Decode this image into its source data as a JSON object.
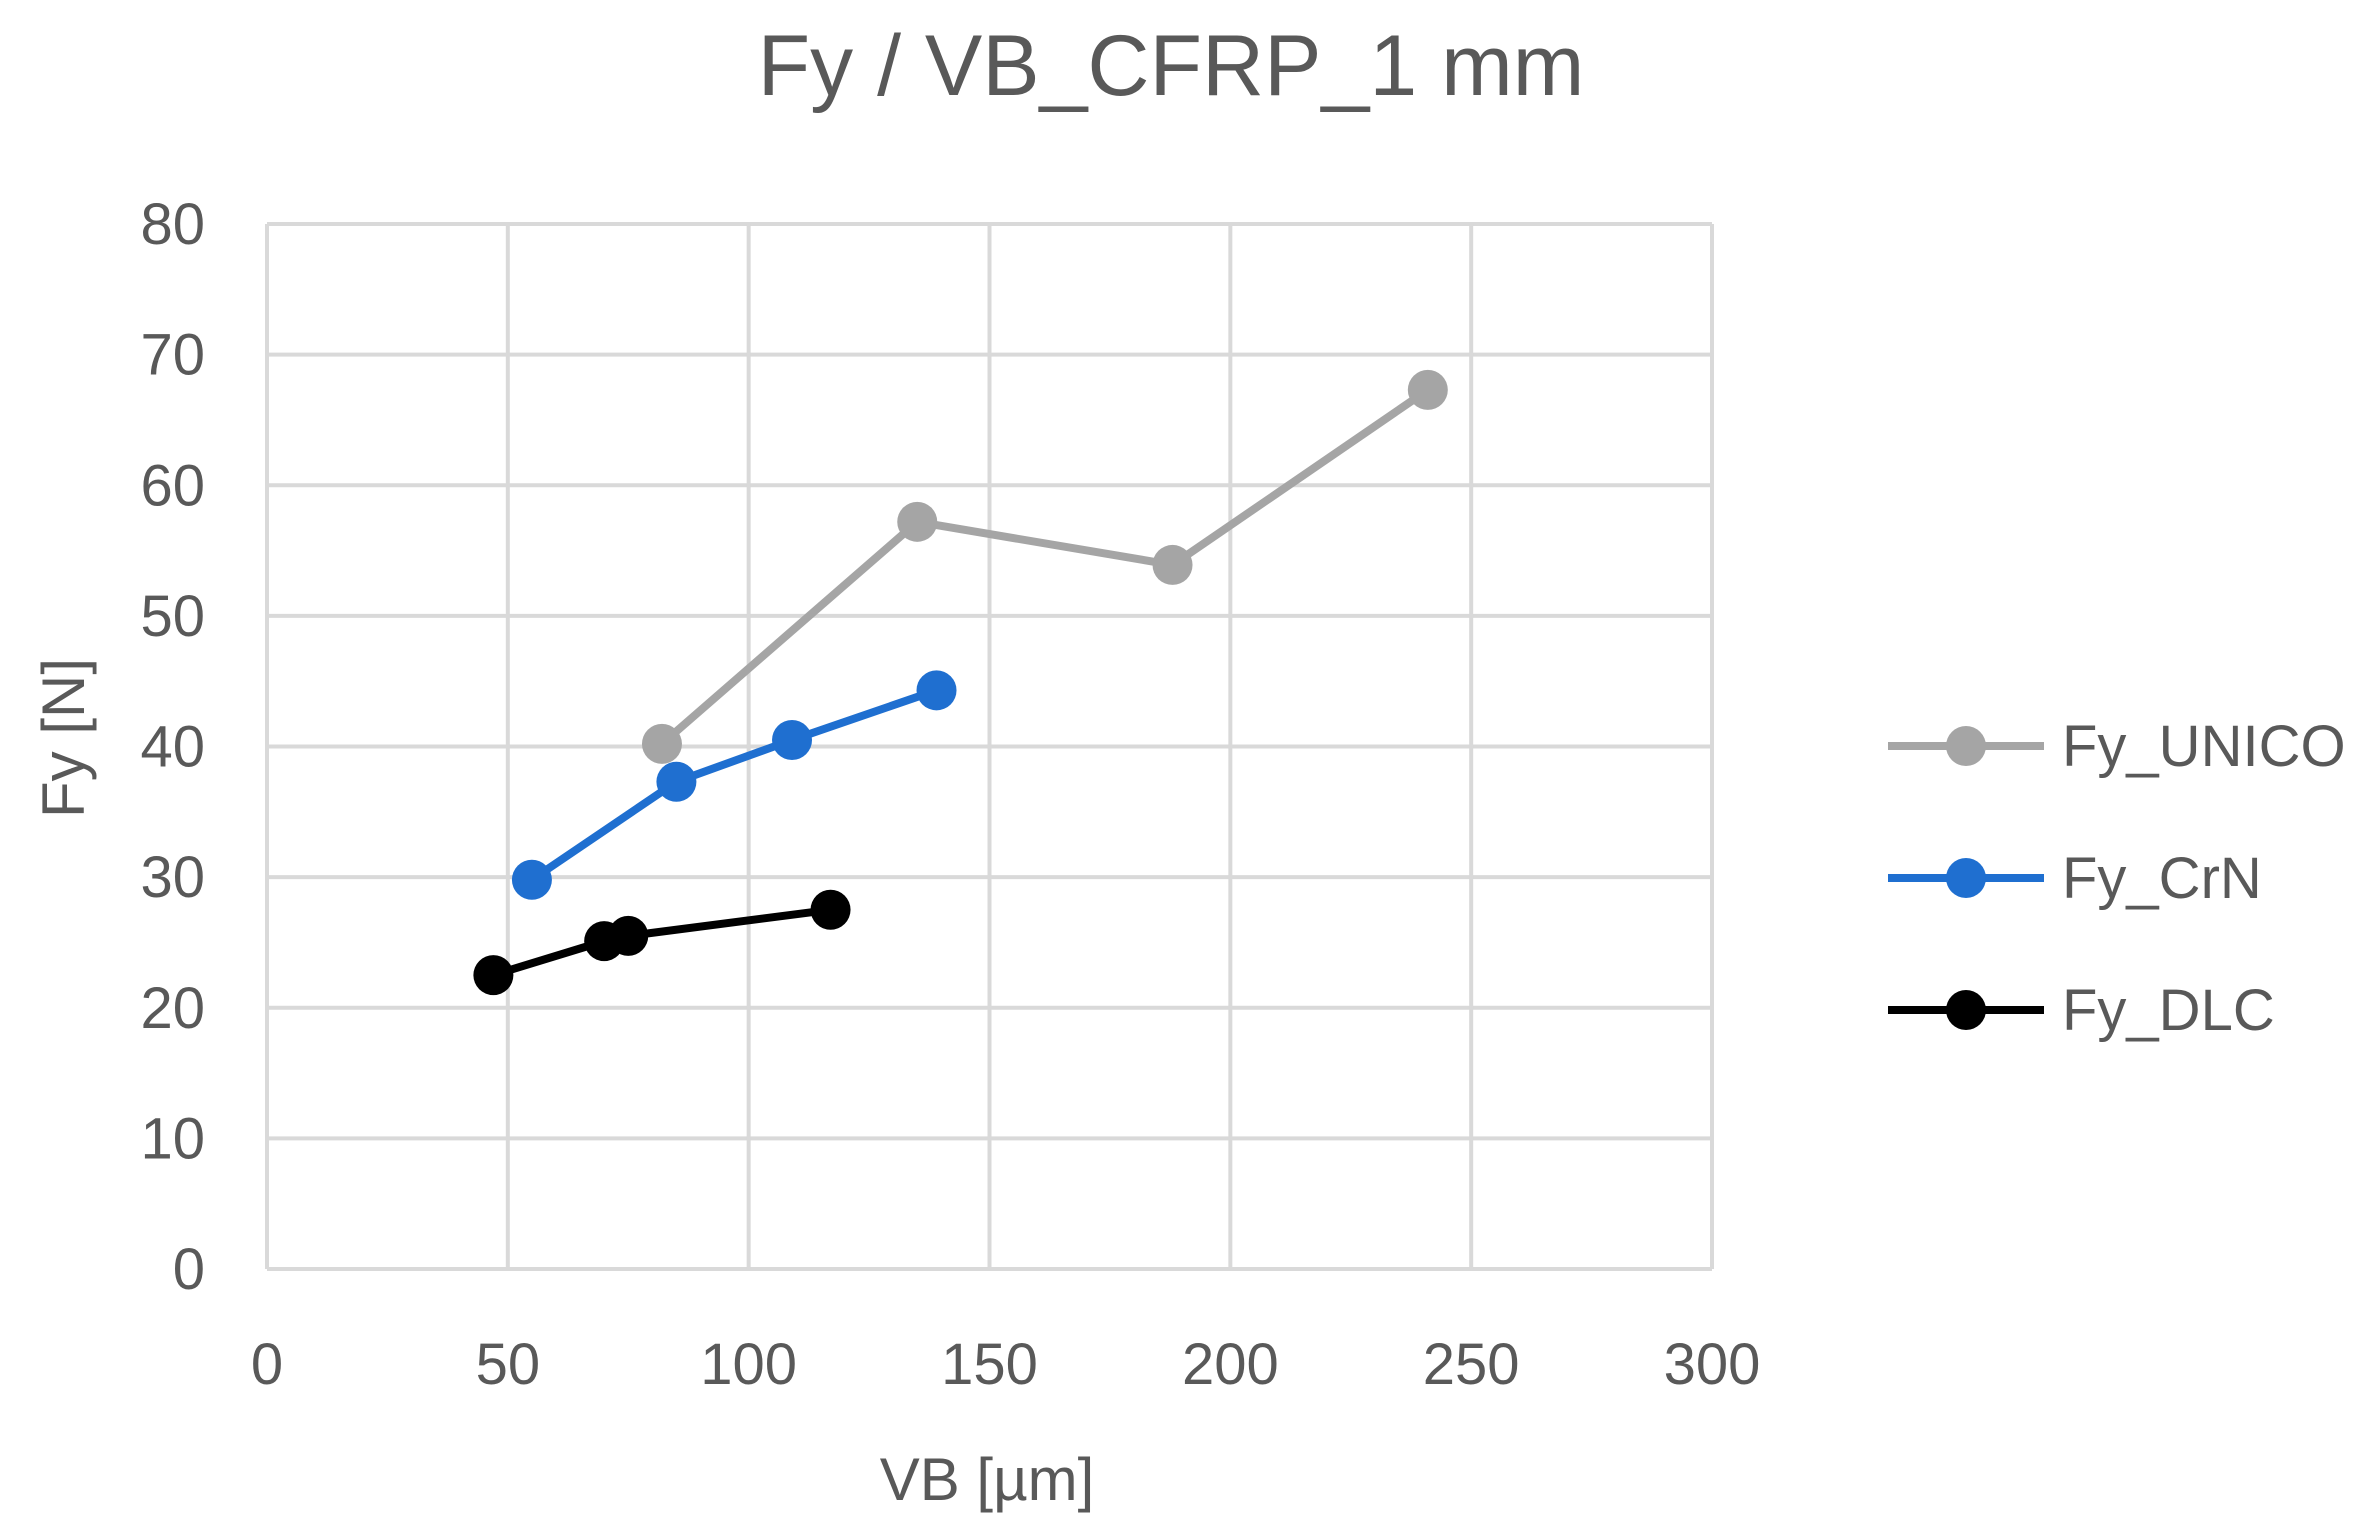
{
  "chart_data": {
    "type": "line",
    "title": "Fy / VB_CFRP_1 mm",
    "xlabel": "VB [µm]",
    "ylabel": "Fy [N]",
    "xlim": [
      0,
      300
    ],
    "ylim": [
      0,
      80
    ],
    "x_ticks": [
      0,
      50,
      100,
      150,
      200,
      250,
      300
    ],
    "y_ticks": [
      0,
      10,
      20,
      30,
      40,
      50,
      60,
      70,
      80
    ],
    "grid": true,
    "legend_position": "right",
    "series": [
      {
        "name": "Fy_UNICO",
        "color": "#A5A5A5",
        "points": [
          [
            82,
            40.2
          ],
          [
            135,
            57.2
          ],
          [
            188,
            53.9
          ],
          [
            241,
            67.3
          ]
        ]
      },
      {
        "name": "Fy_CrN",
        "color": "#1F6FD0",
        "points": [
          [
            55,
            29.8
          ],
          [
            85,
            37.3
          ],
          [
            109,
            40.5
          ],
          [
            139,
            44.3
          ]
        ]
      },
      {
        "name": "Fy_DLC",
        "color": "#000000",
        "points": [
          [
            47,
            22.5
          ],
          [
            70,
            25.1
          ],
          [
            75,
            25.5
          ],
          [
            117,
            27.5
          ]
        ]
      }
    ]
  }
}
